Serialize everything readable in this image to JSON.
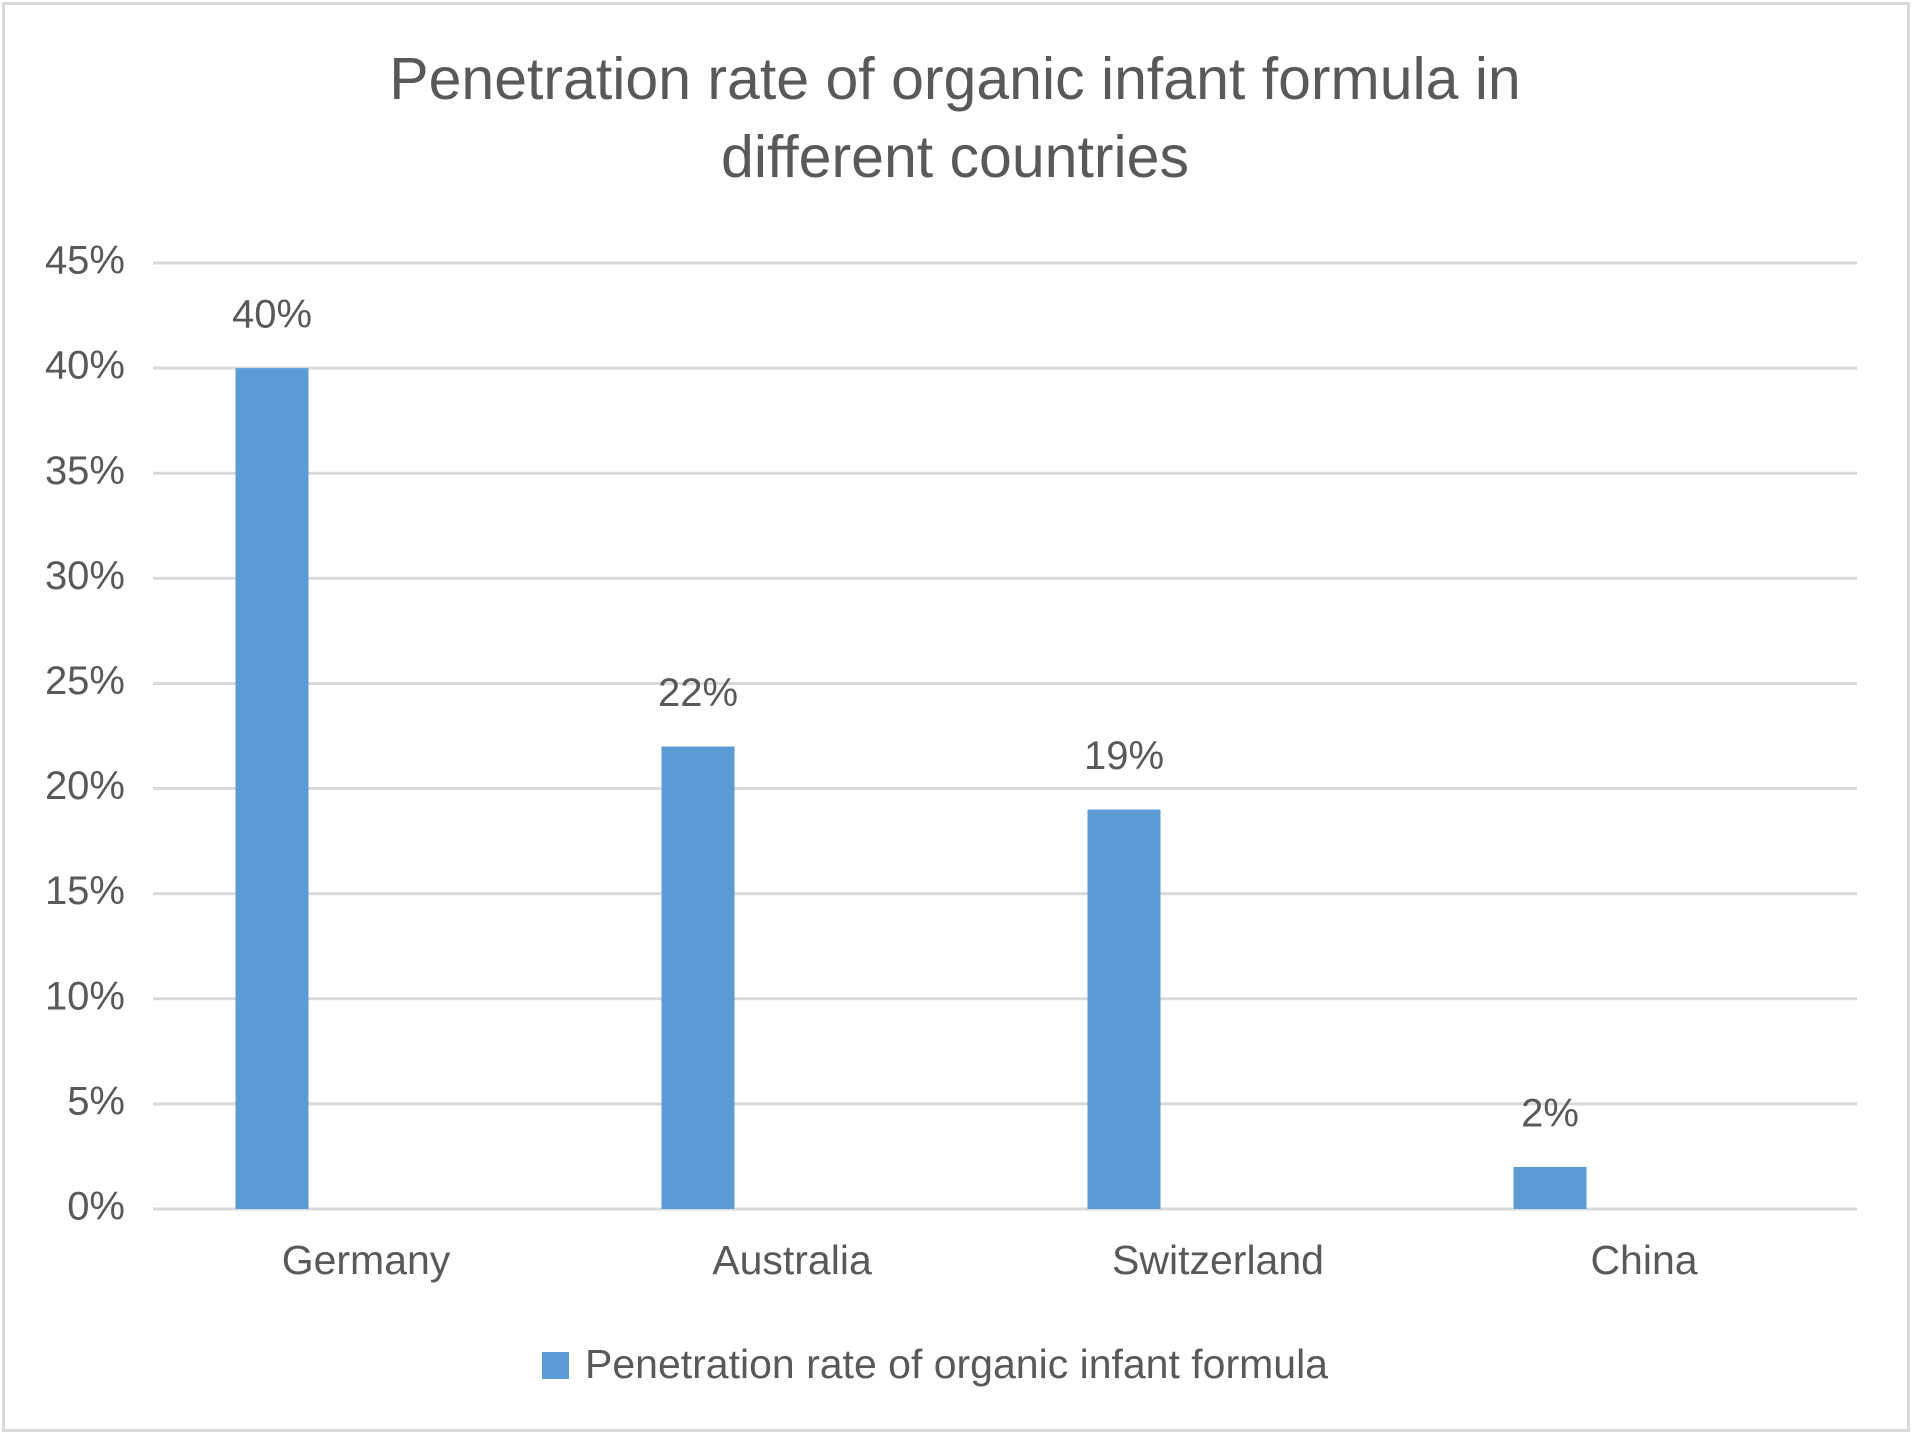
{
  "chart_data": {
    "type": "bar",
    "title": "Penetration rate of organic infant formula in different countries",
    "categories": [
      "Germany",
      "Australia",
      "Switzerland",
      "China"
    ],
    "series": [
      {
        "name": "Penetration rate of organic infant formula",
        "color": "#5b9bd5",
        "values": [
          40,
          22,
          19,
          2
        ],
        "value_labels": [
          "40%",
          "22%",
          "19%",
          "2%"
        ]
      }
    ],
    "ylim": [
      0,
      45
    ],
    "yticks": [
      {
        "value": 0,
        "label": "0%"
      },
      {
        "value": 5,
        "label": "5%"
      },
      {
        "value": 10,
        "label": "10%"
      },
      {
        "value": 15,
        "label": "15%"
      },
      {
        "value": 20,
        "label": "20%"
      },
      {
        "value": 25,
        "label": "25%"
      },
      {
        "value": 30,
        "label": "30%"
      },
      {
        "value": 35,
        "label": "35%"
      },
      {
        "value": 40,
        "label": "40%"
      },
      {
        "value": 45,
        "label": "45%"
      }
    ],
    "grid": true,
    "legend": "bottom"
  }
}
